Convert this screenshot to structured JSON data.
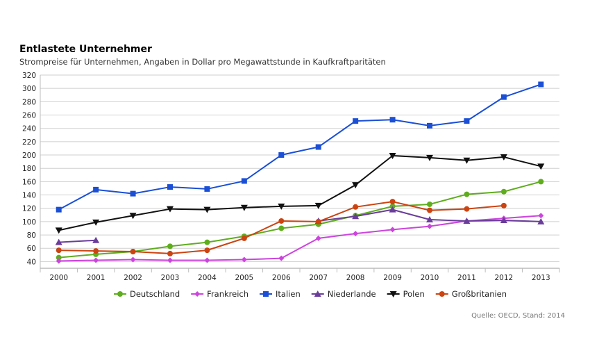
{
  "chart_data": {
    "type": "line",
    "title": "Entlastete Unternehmer",
    "subtitle": "Strompreise für Unternehmen, Angaben in Dollar pro Megawattstunde in Kaufkraftparitäten",
    "source": "Quelle: OECD, Stand: 2014",
    "x": [
      "2000",
      "2001",
      "2002",
      "2003",
      "2004",
      "2005",
      "2006",
      "2007",
      "2008",
      "2009",
      "2010",
      "2011",
      "2012",
      "2013"
    ],
    "yticks": [
      40,
      60,
      80,
      100,
      120,
      140,
      160,
      180,
      200,
      220,
      240,
      260,
      280,
      300,
      320
    ],
    "ylim": [
      30,
      320
    ],
    "grid": true,
    "legend_position": "bottom",
    "series": [
      {
        "name": "Deutschland",
        "color": "#5fad1e",
        "marker": "circle",
        "values": [
          46,
          51,
          55,
          63,
          69,
          78,
          90,
          96,
          109,
          123,
          126,
          141,
          145,
          160
        ]
      },
      {
        "name": "Frankreich",
        "color": "#cc44dd",
        "marker": "diamond",
        "values": [
          41,
          42,
          43,
          42,
          42,
          43,
          45,
          75,
          82,
          88,
          93,
          101,
          105,
          109
        ]
      },
      {
        "name": "Italien",
        "color": "#1a4fd6",
        "marker": "square",
        "values": [
          118,
          148,
          142,
          152,
          149,
          161,
          200,
          212,
          251,
          253,
          244,
          251,
          287,
          306
        ]
      },
      {
        "name": "Niederlande",
        "color": "#6a3d9a",
        "marker": "triangle-up",
        "values": [
          69,
          72,
          null,
          null,
          null,
          null,
          null,
          101,
          108,
          118,
          103,
          101,
          102,
          100
        ]
      },
      {
        "name": "Polen",
        "color": "#111111",
        "marker": "triangle-down",
        "values": [
          87,
          99,
          109,
          119,
          118,
          121,
          123,
          124,
          155,
          199,
          196,
          192,
          197,
          183
        ]
      },
      {
        "name": "Großbritanien",
        "color": "#cc4411",
        "marker": "circle",
        "values": [
          57,
          56,
          55,
          52,
          57,
          75,
          101,
          100,
          122,
          130,
          117,
          119,
          124,
          null
        ]
      }
    ]
  }
}
